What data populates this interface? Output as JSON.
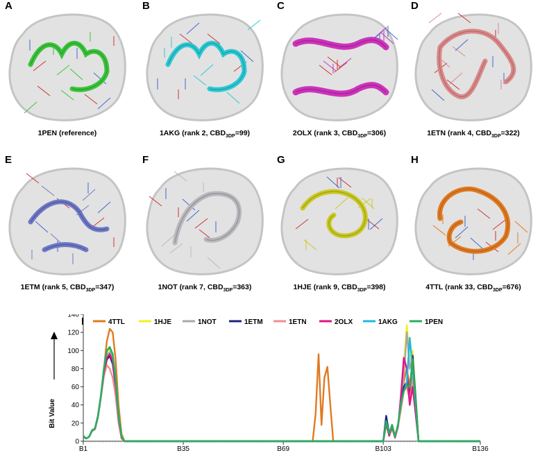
{
  "figure": {
    "panels": [
      {
        "letter": "A",
        "id": "1PEN",
        "rank_text": "(reference)",
        "sub": "",
        "value": "",
        "color": "#3cc43c",
        "dark": "#1f8a1f"
      },
      {
        "letter": "B",
        "id": "1AKG",
        "rank_text": "(rank 2, CBD",
        "sub": "3DP",
        "value": "=99)",
        "color": "#2bc9d4",
        "dark": "#138a94"
      },
      {
        "letter": "C",
        "id": "2OLX",
        "rank_text": "(rank 3, CBD",
        "sub": "3DP",
        "value": "=306)",
        "color": "#cc33bb",
        "dark": "#8a1a7e"
      },
      {
        "letter": "D",
        "id": "1ETN",
        "rank_text": "(rank 4, CBD",
        "sub": "3DP",
        "value": "=322)",
        "color": "#d98a8a",
        "dark": "#a85858"
      },
      {
        "letter": "E",
        "id": "1ETM",
        "rank_text": "(rank 5, CBD",
        "sub": "3DP",
        "value": "=347)",
        "color": "#6f79c4",
        "dark": "#3f4890"
      },
      {
        "letter": "F",
        "id": "1NOT",
        "rank_text": "(rank 7, CBD",
        "sub": "3DP",
        "value": "=363)",
        "color": "#b9b9bd",
        "dark": "#7e7e84"
      },
      {
        "letter": "G",
        "id": "1HJE",
        "rank_text": "(rank 9, CBD",
        "sub": "3DP",
        "value": "=398)",
        "color": "#c9c924",
        "dark": "#8a8a10"
      },
      {
        "letter": "H",
        "id": "4TTL",
        "rank_text": "(rank 33, CBD",
        "sub": "3DP",
        "value": "=676)",
        "color": "#e07a22",
        "dark": "#a8520e"
      }
    ],
    "chart_letter": "I"
  },
  "chart_data": {
    "type": "line",
    "ylabel": "Bit Value",
    "xlabel": "",
    "ylim": [
      0,
      140
    ],
    "yticks": [
      0,
      20,
      40,
      60,
      80,
      100,
      120,
      140
    ],
    "xlim": [
      1,
      136
    ],
    "xticks": [
      {
        "pos": 1,
        "label": "B1"
      },
      {
        "pos": 35,
        "label": "B35"
      },
      {
        "pos": 69,
        "label": "B69"
      },
      {
        "pos": 103,
        "label": "B103"
      },
      {
        "pos": 136,
        "label": "B136"
      }
    ],
    "legend_placement": "top",
    "grid": false,
    "series": [
      {
        "name": "4TTL",
        "color": "#e07a22",
        "points": [
          [
            1,
            6
          ],
          [
            2,
            3
          ],
          [
            3,
            5
          ],
          [
            4,
            12
          ],
          [
            5,
            14
          ],
          [
            6,
            28
          ],
          [
            7,
            50
          ],
          [
            8,
            80
          ],
          [
            9,
            110
          ],
          [
            10,
            124
          ],
          [
            11,
            120
          ],
          [
            12,
            90
          ],
          [
            13,
            40
          ],
          [
            14,
            8
          ],
          [
            15,
            0
          ],
          [
            79,
            0
          ],
          [
            80,
            30
          ],
          [
            81,
            96
          ],
          [
            82,
            18
          ],
          [
            83,
            70
          ],
          [
            84,
            82
          ],
          [
            85,
            40
          ],
          [
            86,
            0
          ],
          [
            103,
            0
          ],
          [
            104,
            20
          ],
          [
            105,
            8
          ],
          [
            106,
            16
          ],
          [
            107,
            5
          ],
          [
            108,
            18
          ],
          [
            109,
            35
          ],
          [
            110,
            65
          ],
          [
            111,
            80
          ],
          [
            112,
            60
          ],
          [
            113,
            88
          ],
          [
            114,
            45
          ],
          [
            115,
            0
          ]
        ]
      },
      {
        "name": "1HJE",
        "color": "#f2f21a",
        "points": [
          [
            1,
            6
          ],
          [
            2,
            3
          ],
          [
            3,
            5
          ],
          [
            4,
            12
          ],
          [
            5,
            14
          ],
          [
            6,
            28
          ],
          [
            7,
            50
          ],
          [
            8,
            80
          ],
          [
            9,
            98
          ],
          [
            10,
            100
          ],
          [
            11,
            92
          ],
          [
            12,
            70
          ],
          [
            13,
            30
          ],
          [
            14,
            5
          ],
          [
            15,
            0
          ],
          [
            103,
            0
          ],
          [
            104,
            22
          ],
          [
            105,
            8
          ],
          [
            106,
            18
          ],
          [
            107,
            5
          ],
          [
            108,
            18
          ],
          [
            109,
            40
          ],
          [
            110,
            85
          ],
          [
            111,
            128
          ],
          [
            112,
            90
          ],
          [
            113,
            100
          ],
          [
            114,
            50
          ],
          [
            115,
            0
          ]
        ]
      },
      {
        "name": "1NOT",
        "color": "#a8a8a8",
        "points": [
          [
            1,
            6
          ],
          [
            2,
            3
          ],
          [
            3,
            5
          ],
          [
            4,
            12
          ],
          [
            5,
            14
          ],
          [
            6,
            28
          ],
          [
            7,
            50
          ],
          [
            8,
            78
          ],
          [
            9,
            95
          ],
          [
            10,
            98
          ],
          [
            11,
            90
          ],
          [
            12,
            65
          ],
          [
            13,
            28
          ],
          [
            14,
            5
          ],
          [
            15,
            0
          ],
          [
            103,
            0
          ],
          [
            104,
            22
          ],
          [
            105,
            8
          ],
          [
            106,
            18
          ],
          [
            107,
            5
          ],
          [
            108,
            18
          ],
          [
            109,
            40
          ],
          [
            110,
            70
          ],
          [
            111,
            120
          ],
          [
            112,
            80
          ],
          [
            113,
            95
          ],
          [
            114,
            48
          ],
          [
            115,
            0
          ]
        ]
      },
      {
        "name": "1ETM",
        "color": "#1f237a",
        "points": [
          [
            1,
            5
          ],
          [
            2,
            3
          ],
          [
            3,
            5
          ],
          [
            4,
            12
          ],
          [
            5,
            14
          ],
          [
            6,
            28
          ],
          [
            7,
            50
          ],
          [
            8,
            75
          ],
          [
            9,
            90
          ],
          [
            10,
            94
          ],
          [
            11,
            85
          ],
          [
            12,
            60
          ],
          [
            13,
            25
          ],
          [
            14,
            4
          ],
          [
            15,
            0
          ],
          [
            103,
            0
          ],
          [
            104,
            28
          ],
          [
            105,
            8
          ],
          [
            106,
            18
          ],
          [
            107,
            5
          ],
          [
            108,
            18
          ],
          [
            109,
            38
          ],
          [
            110,
            60
          ],
          [
            111,
            65
          ],
          [
            112,
            50
          ],
          [
            113,
            94
          ],
          [
            114,
            48
          ],
          [
            115,
            0
          ]
        ]
      },
      {
        "name": "1ETN",
        "color": "#f28c8c",
        "points": [
          [
            1,
            5
          ],
          [
            2,
            3
          ],
          [
            3,
            5
          ],
          [
            4,
            11
          ],
          [
            5,
            13
          ],
          [
            6,
            26
          ],
          [
            7,
            48
          ],
          [
            8,
            72
          ],
          [
            9,
            84
          ],
          [
            10,
            80
          ],
          [
            11,
            70
          ],
          [
            12,
            50
          ],
          [
            13,
            20
          ],
          [
            14,
            3
          ],
          [
            15,
            0
          ],
          [
            103,
            0
          ],
          [
            104,
            18
          ],
          [
            105,
            6
          ],
          [
            106,
            14
          ],
          [
            107,
            4
          ],
          [
            108,
            16
          ],
          [
            109,
            35
          ],
          [
            110,
            55
          ],
          [
            111,
            60
          ],
          [
            112,
            45
          ],
          [
            113,
            70
          ],
          [
            114,
            40
          ],
          [
            115,
            0
          ]
        ]
      },
      {
        "name": "2OLX",
        "color": "#e0157e",
        "points": [
          [
            1,
            5
          ],
          [
            2,
            3
          ],
          [
            3,
            5
          ],
          [
            4,
            12
          ],
          [
            5,
            14
          ],
          [
            6,
            28
          ],
          [
            7,
            50
          ],
          [
            8,
            76
          ],
          [
            9,
            92
          ],
          [
            10,
            96
          ],
          [
            11,
            88
          ],
          [
            12,
            62
          ],
          [
            13,
            26
          ],
          [
            14,
            4
          ],
          [
            15,
            0
          ],
          [
            103,
            0
          ],
          [
            104,
            20
          ],
          [
            105,
            6
          ],
          [
            106,
            16
          ],
          [
            107,
            4
          ],
          [
            108,
            16
          ],
          [
            109,
            50
          ],
          [
            110,
            92
          ],
          [
            111,
            80
          ],
          [
            112,
            40
          ],
          [
            113,
            60
          ],
          [
            114,
            30
          ],
          [
            115,
            0
          ]
        ]
      },
      {
        "name": "1AKG",
        "color": "#1fb8e0",
        "points": [
          [
            1,
            6
          ],
          [
            2,
            3
          ],
          [
            3,
            5
          ],
          [
            4,
            12
          ],
          [
            5,
            14
          ],
          [
            6,
            28
          ],
          [
            7,
            50
          ],
          [
            8,
            80
          ],
          [
            9,
            100
          ],
          [
            10,
            103
          ],
          [
            11,
            95
          ],
          [
            12,
            68
          ],
          [
            13,
            28
          ],
          [
            14,
            5
          ],
          [
            15,
            0
          ],
          [
            103,
            0
          ],
          [
            104,
            22
          ],
          [
            105,
            8
          ],
          [
            106,
            18
          ],
          [
            107,
            5
          ],
          [
            108,
            18
          ],
          [
            109,
            42
          ],
          [
            110,
            55
          ],
          [
            111,
            65
          ],
          [
            112,
            114
          ],
          [
            113,
            80
          ],
          [
            114,
            40
          ],
          [
            115,
            0
          ]
        ]
      },
      {
        "name": "1PEN",
        "color": "#26b05a",
        "points": [
          [
            1,
            6
          ],
          [
            2,
            3
          ],
          [
            3,
            5
          ],
          [
            4,
            12
          ],
          [
            5,
            14
          ],
          [
            6,
            28
          ],
          [
            7,
            50
          ],
          [
            8,
            80
          ],
          [
            9,
            100
          ],
          [
            10,
            104
          ],
          [
            11,
            96
          ],
          [
            12,
            70
          ],
          [
            13,
            30
          ],
          [
            14,
            5
          ],
          [
            15,
            0
          ],
          [
            103,
            0
          ],
          [
            104,
            22
          ],
          [
            105,
            8
          ],
          [
            106,
            18
          ],
          [
            107,
            5
          ],
          [
            108,
            18
          ],
          [
            109,
            40
          ],
          [
            110,
            55
          ],
          [
            111,
            62
          ],
          [
            112,
            60
          ],
          [
            113,
            90
          ],
          [
            114,
            45
          ],
          [
            115,
            0
          ]
        ]
      }
    ]
  }
}
